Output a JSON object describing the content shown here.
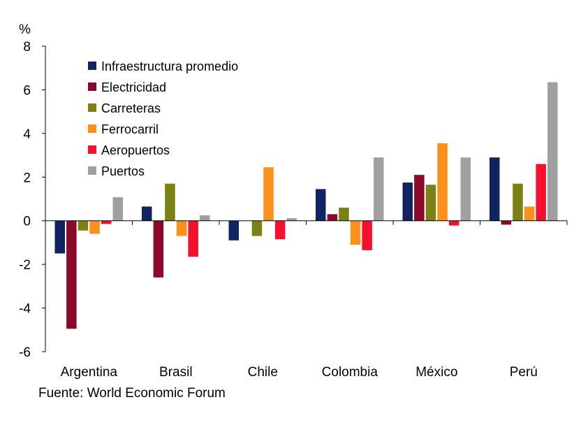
{
  "chart_data": {
    "type": "bar",
    "unit_label": "%",
    "categories": [
      "Argentina",
      "Brasil",
      "Chile",
      "Colombia",
      "México",
      "Perú"
    ],
    "series": [
      {
        "name": "Infraestructura promedio",
        "color": "#0f2460",
        "values": [
          -1.5,
          0.65,
          -0.9,
          1.45,
          1.75,
          2.9
        ]
      },
      {
        "name": "Electricidad",
        "color": "#8b0a2a",
        "values": [
          -4.95,
          -2.6,
          0.0,
          0.3,
          2.1,
          -0.18
        ]
      },
      {
        "name": "Carreteras",
        "color": "#7b8112",
        "values": [
          -0.45,
          1.7,
          -0.7,
          0.6,
          1.65,
          1.7
        ]
      },
      {
        "name": "Ferrocarril",
        "color": "#fd8f1c",
        "values": [
          -0.6,
          -0.7,
          2.45,
          -1.1,
          3.55,
          0.65
        ]
      },
      {
        "name": "Aeropuertos",
        "color": "#f5102e",
        "values": [
          -0.15,
          -1.65,
          -0.85,
          -1.35,
          -0.22,
          2.6
        ]
      },
      {
        "name": "Puertos",
        "color": "#a0a0a0",
        "values": [
          1.08,
          0.25,
          0.12,
          2.9,
          2.9,
          6.35
        ]
      }
    ],
    "ylim": [
      -6,
      8
    ],
    "yticks": [
      -6,
      -4,
      -2,
      0,
      2,
      4,
      6,
      8
    ],
    "ytick_labels": [
      "-6",
      "-4",
      "-2",
      "0",
      "2",
      "4",
      "6",
      "8"
    ],
    "legend_position": "top-left",
    "grid": false,
    "title": "",
    "xlabel": "",
    "ylabel": "%"
  },
  "source_text": "Fuente: World Economic Forum"
}
